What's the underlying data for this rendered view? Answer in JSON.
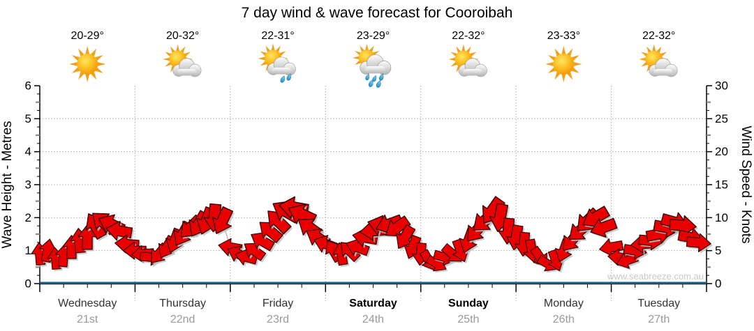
{
  "title": "7 day wind & wave forecast for Cooroibah",
  "watermark": "www.seabreeze.com.au",
  "days": [
    {
      "name": "Wednesday",
      "date": "21st",
      "temp": "20-29°",
      "icon": "sunny",
      "weekend": false
    },
    {
      "name": "Thursday",
      "date": "22nd",
      "temp": "20-32°",
      "icon": "partly-cloudy",
      "weekend": false
    },
    {
      "name": "Friday",
      "date": "23rd",
      "temp": "22-31°",
      "icon": "light-showers",
      "weekend": false
    },
    {
      "name": "Saturday",
      "date": "24th",
      "temp": "23-29°",
      "icon": "showers",
      "weekend": true
    },
    {
      "name": "Sunday",
      "date": "25th",
      "temp": "22-32°",
      "icon": "partly-cloudy",
      "weekend": true
    },
    {
      "name": "Monday",
      "date": "26th",
      "temp": "23-33°",
      "icon": "sunny",
      "weekend": false
    },
    {
      "name": "Tuesday",
      "date": "27th",
      "temp": "22-32°",
      "icon": "partly-cloudy",
      "weekend": false
    }
  ],
  "chart_data": {
    "type": "wind-arrow-timeseries",
    "title": "7 day wind & wave forecast for Cooroibah",
    "left_axis": {
      "label": "Wave Height - Metres",
      "min": 0,
      "max": 6,
      "ticks": [
        0,
        1,
        2,
        3,
        4,
        5,
        6
      ]
    },
    "right_axis": {
      "label": "Wind Speed - Knots",
      "min": 0,
      "max": 30,
      "ticks": [
        0,
        5,
        10,
        15,
        20,
        25,
        30
      ]
    },
    "x_axis": {
      "days": 7,
      "minor_ticks_per_day": 4,
      "grid": "dotted vertical at day boundaries"
    },
    "grid": "dotted horizontal every metre (1-5)",
    "wave_height_series": "flat at 0 metres (blue line along baseline)",
    "colors": {
      "arrow_fill": "#e80000",
      "arrow_stroke": "#2e0000",
      "arrow_shadow": "#bfbfbf",
      "wave_line": "#1d5c84",
      "grid": "#aaaaaa",
      "axis": "#000000",
      "day_name": "#333333",
      "day_name_weekend": "#000000",
      "day_date": "#9a9a9a",
      "watermark": "#c8c8c8",
      "sun": "#f5a81c",
      "cloud": "#c9c9c9",
      "rain": "#2fa9e0"
    },
    "wind": {
      "units": "knots",
      "hours_step": 2,
      "note": "each point: [hour from Wed 00:00, speed knots, arrow screen rotation deg (0=right,-90=up,180=left,90=down)]",
      "points": [
        [
          0,
          4.5,
          -95
        ],
        [
          2,
          5,
          -80
        ],
        [
          4,
          3.8,
          -95
        ],
        [
          6,
          4.2,
          -85
        ],
        [
          8,
          5.5,
          -90
        ],
        [
          10,
          6.5,
          -95
        ],
        [
          12,
          7,
          -90
        ],
        [
          14,
          8.8,
          -120
        ],
        [
          16,
          9.3,
          -140
        ],
        [
          18,
          9,
          -155
        ],
        [
          20,
          8,
          -170
        ],
        [
          22,
          6,
          -175
        ],
        [
          24,
          5,
          180
        ],
        [
          26,
          4.5,
          175
        ],
        [
          28,
          4,
          5
        ],
        [
          30,
          4.5,
          130
        ],
        [
          32,
          5.5,
          120
        ],
        [
          34,
          6.5,
          110
        ],
        [
          36,
          7.5,
          120
        ],
        [
          38,
          8.5,
          135
        ],
        [
          40,
          9,
          120
        ],
        [
          42,
          9.5,
          110
        ],
        [
          44,
          10,
          95
        ],
        [
          46,
          9.5,
          115
        ],
        [
          48,
          5.5,
          -170
        ],
        [
          50,
          4.5,
          -155
        ],
        [
          52,
          4,
          -165
        ],
        [
          54,
          5,
          -145
        ],
        [
          56,
          6.5,
          -150
        ],
        [
          58,
          8,
          -140
        ],
        [
          60,
          9.5,
          -135
        ],
        [
          62,
          11,
          -150
        ],
        [
          64,
          11.5,
          -170
        ],
        [
          66,
          10.5,
          -155
        ],
        [
          68,
          8.5,
          -145
        ],
        [
          70,
          7,
          -150
        ],
        [
          72,
          6,
          -160
        ],
        [
          74,
          5,
          -120
        ],
        [
          76,
          4.5,
          -100
        ],
        [
          78,
          5,
          -135
        ],
        [
          80,
          5.5,
          -160
        ],
        [
          82,
          7,
          -170
        ],
        [
          84,
          8,
          175
        ],
        [
          86,
          8.8,
          -165
        ],
        [
          88,
          9,
          160
        ],
        [
          90,
          8.5,
          145
        ],
        [
          92,
          7,
          120
        ],
        [
          94,
          5.5,
          110
        ],
        [
          96,
          4.5,
          95
        ],
        [
          98,
          3.5,
          60
        ],
        [
          100,
          3,
          30
        ],
        [
          102,
          4,
          15
        ],
        [
          104,
          4.5,
          40
        ],
        [
          106,
          5,
          70
        ],
        [
          108,
          6.5,
          110
        ],
        [
          110,
          8,
          130
        ],
        [
          112,
          9.5,
          140
        ],
        [
          114,
          11,
          125
        ],
        [
          116,
          10,
          100
        ],
        [
          118,
          8,
          95
        ],
        [
          120,
          7,
          100
        ],
        [
          122,
          6,
          95
        ],
        [
          124,
          5,
          80
        ],
        [
          126,
          4,
          55
        ],
        [
          128,
          3,
          30
        ],
        [
          130,
          3.5,
          70
        ],
        [
          132,
          5,
          110
        ],
        [
          134,
          6.5,
          130
        ],
        [
          136,
          8,
          140
        ],
        [
          138,
          9.5,
          135
        ],
        [
          140,
          10,
          150
        ],
        [
          142,
          8.5,
          160
        ],
        [
          144,
          5.5,
          170
        ],
        [
          146,
          4,
          185
        ],
        [
          148,
          3.5,
          160
        ],
        [
          150,
          5,
          10
        ],
        [
          152,
          6,
          175
        ],
        [
          154,
          6.5,
          5
        ],
        [
          156,
          7.5,
          -10
        ],
        [
          158,
          8.5,
          10
        ],
        [
          160,
          9.3,
          15
        ],
        [
          162,
          8.8,
          5
        ],
        [
          164,
          7,
          10
        ],
        [
          166,
          6.2,
          5
        ]
      ]
    }
  }
}
